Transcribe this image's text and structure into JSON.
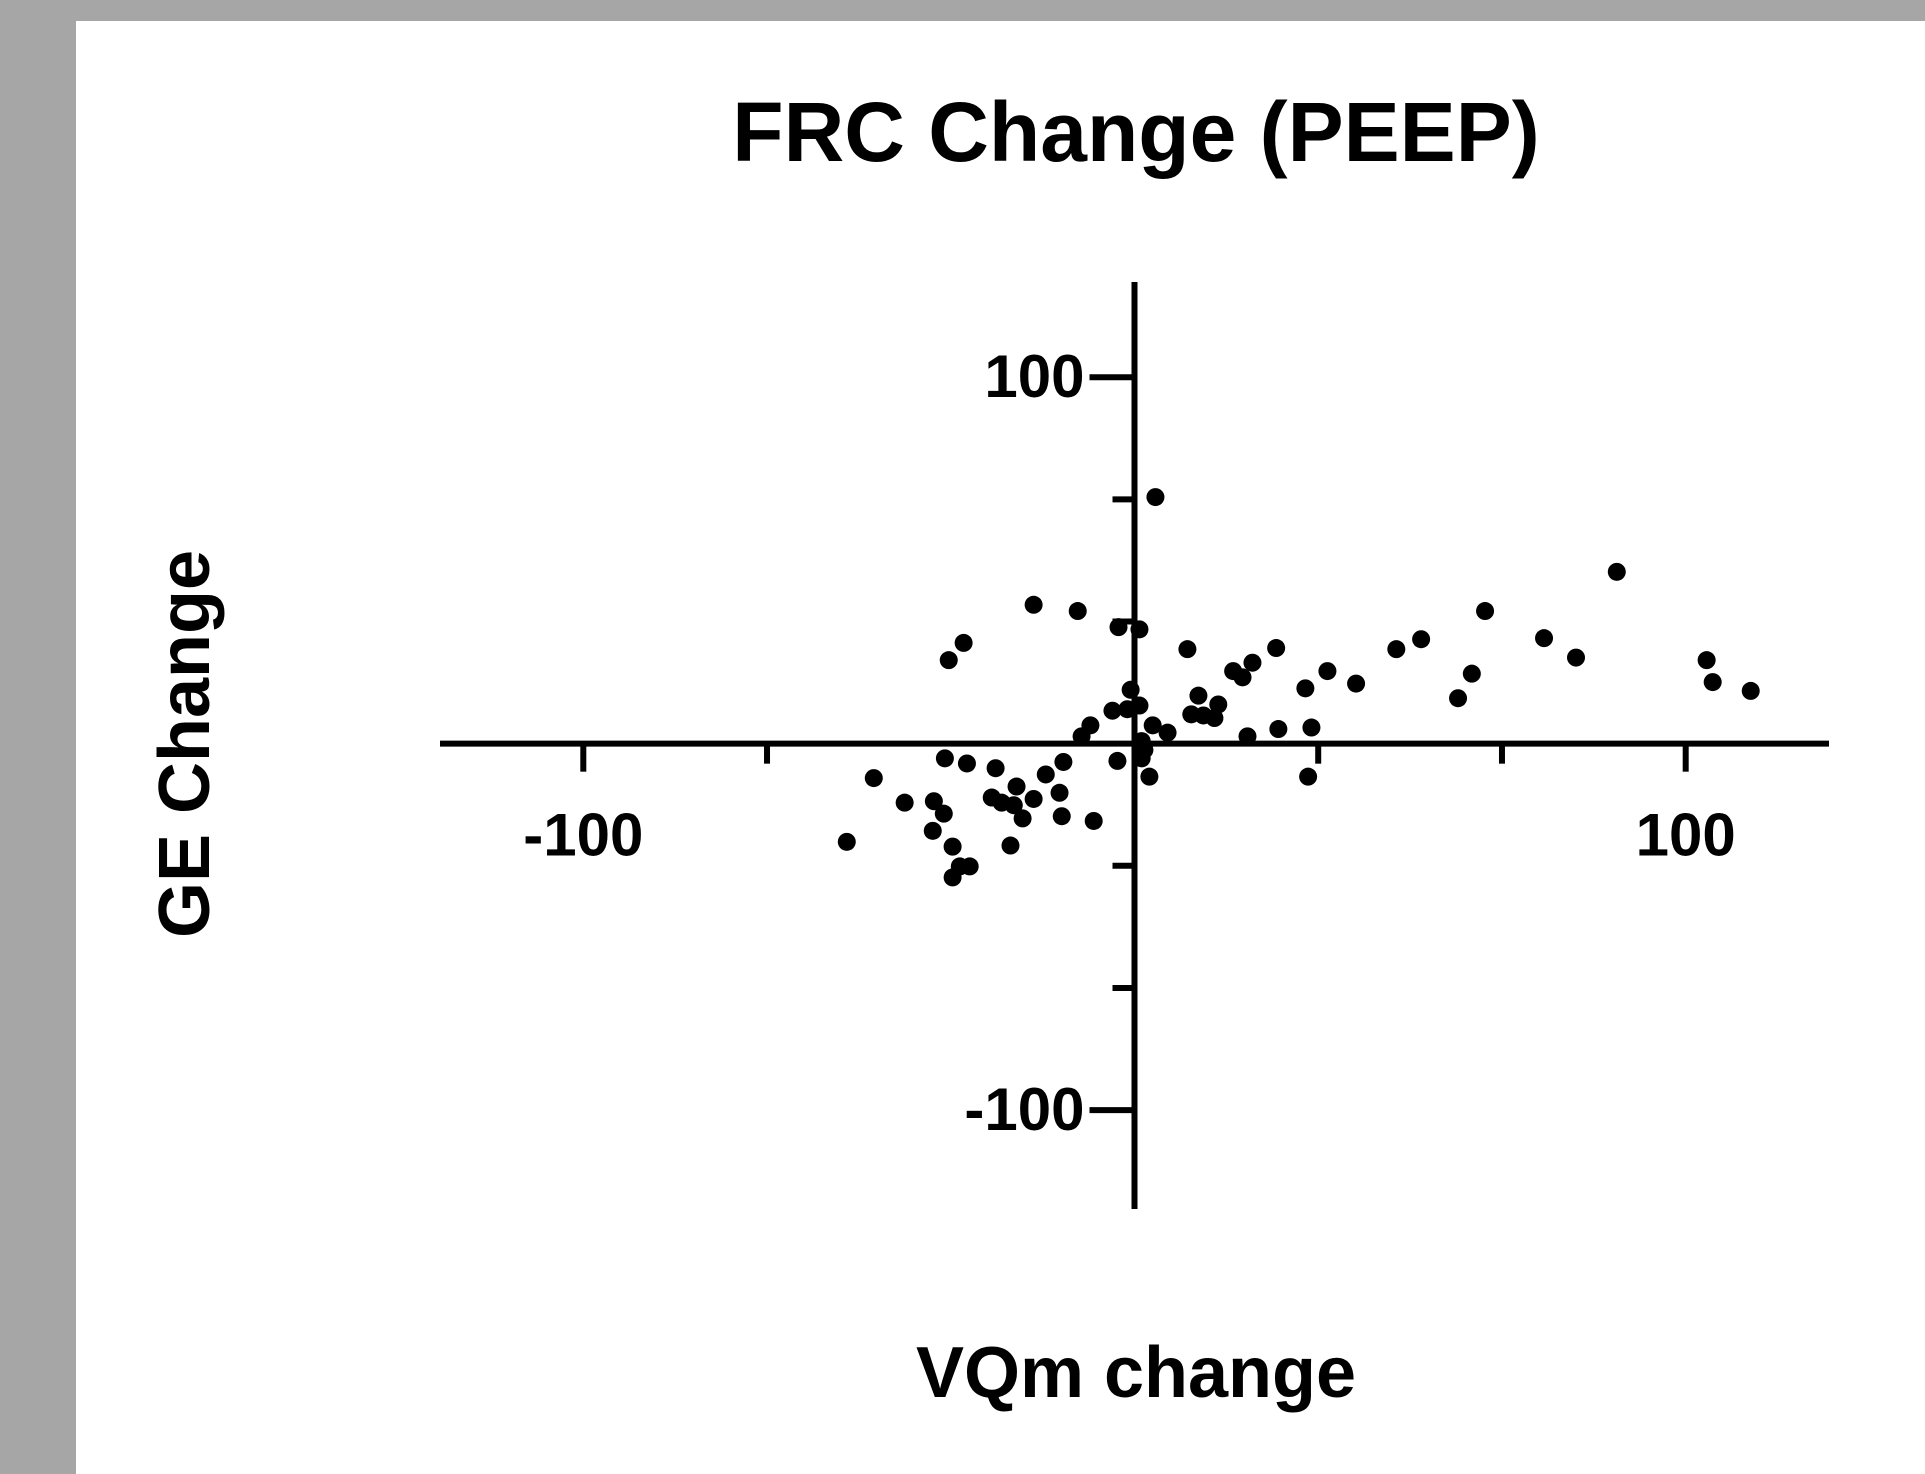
{
  "chart_data": {
    "type": "scatter",
    "title": "FRC Change (PEEP)",
    "x_label": "VQm change",
    "y_label": "GE Change",
    "xlim": [
      -126,
      126
    ],
    "ylim": [
      -127,
      126
    ],
    "xticks": [
      -100,
      100
    ],
    "yticks": [
      -100,
      100
    ],
    "xminor_ticks": [
      -66.67,
      33.33,
      66.67
    ],
    "yminor_ticks": [
      -66.67,
      -33.33,
      33.33,
      66.67
    ],
    "color": "#000000",
    "x": [
      3.8,
      87.5,
      -18.3,
      -10.3,
      63.6,
      52.0,
      74.3,
      47.5,
      -31.0,
      -33.7,
      -2.9,
      0.9,
      9.6,
      25.7,
      21.4,
      17.9,
      19.6,
      35.0,
      40.2,
      31.0,
      61.2,
      58.7,
      80.1,
      103.8,
      104.9,
      111.8,
      -0.7,
      0.9,
      -1.3,
      -4.0,
      11.6,
      15.2,
      10.3,
      12.5,
      14.5,
      3.3,
      6.0,
      26.1,
      32.1,
      20.5,
      -8.0,
      -9.6,
      1.3,
      1.8,
      1.3,
      2.7,
      -3.1,
      -12.9,
      -16.1,
      -13.6,
      -18.3,
      -13.2,
      -7.4,
      31.5,
      -34.4,
      -30.4,
      -25.2,
      -21.4,
      -25.9,
      -24.1,
      -21.9,
      -20.3,
      -47.3,
      -41.7,
      -36.4,
      -34.6,
      -36.6,
      -22.5,
      -33.0,
      -31.7,
      -29.9,
      -33.0,
      -52.2
    ],
    "y": [
      67.3,
      46.9,
      37.9,
      36.2,
      36.2,
      28.5,
      28.8,
      25.8,
      27.5,
      22.8,
      31.8,
      31.2,
      25.8,
      26.1,
      22.1,
      19.8,
      18.1,
      19.8,
      16.4,
      15.1,
      19.1,
      12.4,
      23.5,
      22.8,
      16.8,
      14.4,
      14.7,
      10.4,
      9.4,
      9.0,
      13.1,
      10.7,
      8.0,
      7.7,
      7.0,
      5.0,
      3.0,
      4.0,
      4.4,
      2.0,
      5.0,
      2.0,
      0.7,
      -1.7,
      -4.0,
      -9.0,
      -4.7,
      -5.0,
      -8.4,
      -13.4,
      -15.1,
      -19.8,
      -21.1,
      -9.0,
      -4.0,
      -5.4,
      -6.7,
      -11.7,
      -14.7,
      -16.1,
      -16.8,
      -20.4,
      -9.4,
      -16.1,
      -15.7,
      -19.1,
      -23.8,
      -27.8,
      -28.1,
      -33.5,
      -33.5,
      -36.5,
      -26.8
    ]
  }
}
